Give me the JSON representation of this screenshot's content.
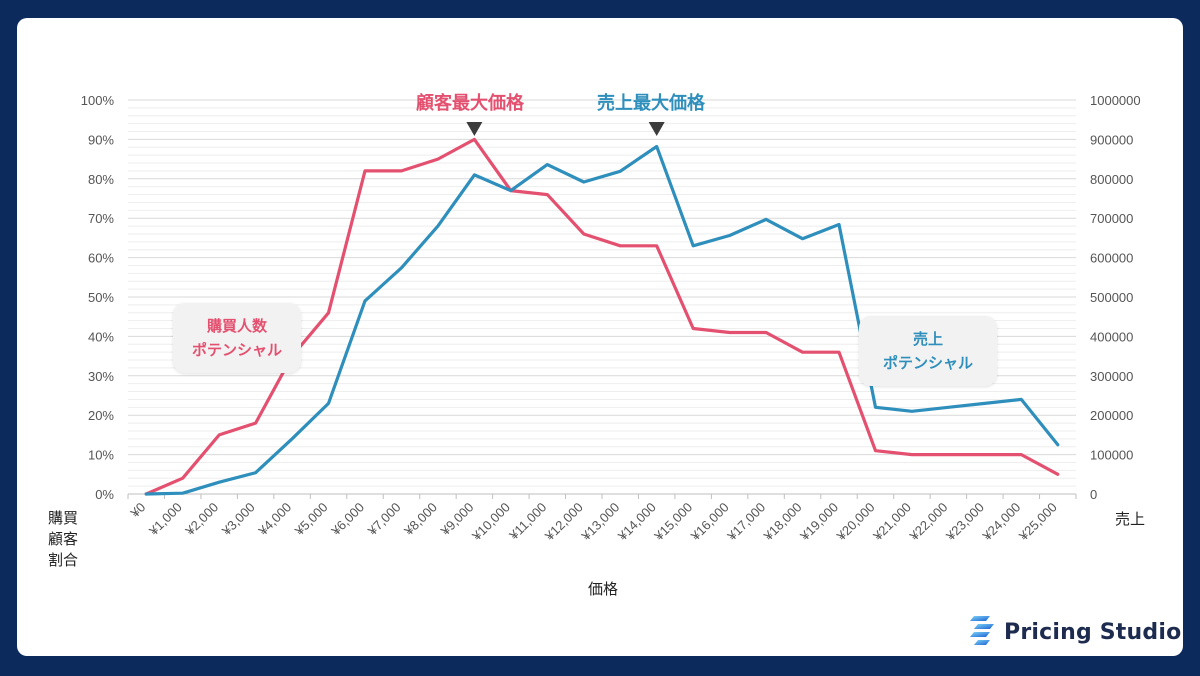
{
  "chart_data": {
    "type": "line",
    "x_categories": [
      "¥0",
      "¥1,000",
      "¥2,000",
      "¥3,000",
      "¥4,000",
      "¥5,000",
      "¥6,000",
      "¥7,000",
      "¥8,000",
      "¥9,000",
      "¥10,000",
      "¥11,000",
      "¥12,000",
      "¥13,000",
      "¥14,000",
      "¥15,000",
      "¥16,000",
      "¥17,000",
      "¥18,000",
      "¥19,000",
      "¥20,000",
      "¥21,000",
      "¥22,000",
      "¥23,000",
      "¥24,000",
      "¥25,000"
    ],
    "xlabel": "価格",
    "ylabel_left": "購買顧客割合",
    "ylabel_left_lines": [
      "購買",
      "顧客",
      "割合"
    ],
    "ylabel_right": "売上",
    "y_left_ticks": [
      "0%",
      "10%",
      "20%",
      "30%",
      "40%",
      "50%",
      "60%",
      "70%",
      "80%",
      "90%",
      "100%"
    ],
    "y_right_ticks": [
      "0",
      "100000",
      "200000",
      "300000",
      "400000",
      "500000",
      "600000",
      "700000",
      "800000",
      "900000",
      "1000000"
    ],
    "ylim_left": [
      0,
      100
    ],
    "ylim_right": [
      0,
      1000000
    ],
    "grid": true,
    "series": [
      {
        "axis": "left",
        "color": "#e4506f",
        "values": [
          0,
          4,
          15,
          18,
          35,
          46,
          82,
          82,
          85,
          90,
          77,
          76,
          66,
          63,
          63,
          42,
          41,
          41,
          36,
          36,
          11,
          10,
          10,
          10,
          10,
          5
        ]
      },
      {
        "axis": "right",
        "color": "#2f8fbc",
        "values": [
          0,
          2000,
          30000,
          54000,
          140000,
          230000,
          490000,
          574000,
          680000,
          810000,
          770000,
          836000,
          792000,
          819000,
          882000,
          630000,
          656000,
          697000,
          648000,
          684000,
          220000,
          210000,
          220000,
          230000,
          240000,
          125000
        ]
      }
    ],
    "annotations": {
      "customer_max": {
        "label": "顧客最大価格",
        "color": "#e4506f",
        "marker": "down-triangle",
        "at_index": 9
      },
      "sales_max": {
        "label": "売上最大価格",
        "color": "#2f8fbc",
        "marker": "down-triangle",
        "at_index": 14
      },
      "customer_potential": {
        "lines": [
          "購買人数",
          "ポテンシャル"
        ],
        "color": "#e4506f"
      },
      "sales_potential": {
        "lines": [
          "売上",
          "ポテンシャル"
        ],
        "color": "#2f8fbc"
      }
    }
  },
  "brand": {
    "name": "Pricing Studio",
    "icon": "pricing-studio-logo-icon",
    "color": "#1d2b4f"
  },
  "colors": {
    "background": "#0c2a5c",
    "card": "#ffffff",
    "grid": "#e3e3e3"
  }
}
